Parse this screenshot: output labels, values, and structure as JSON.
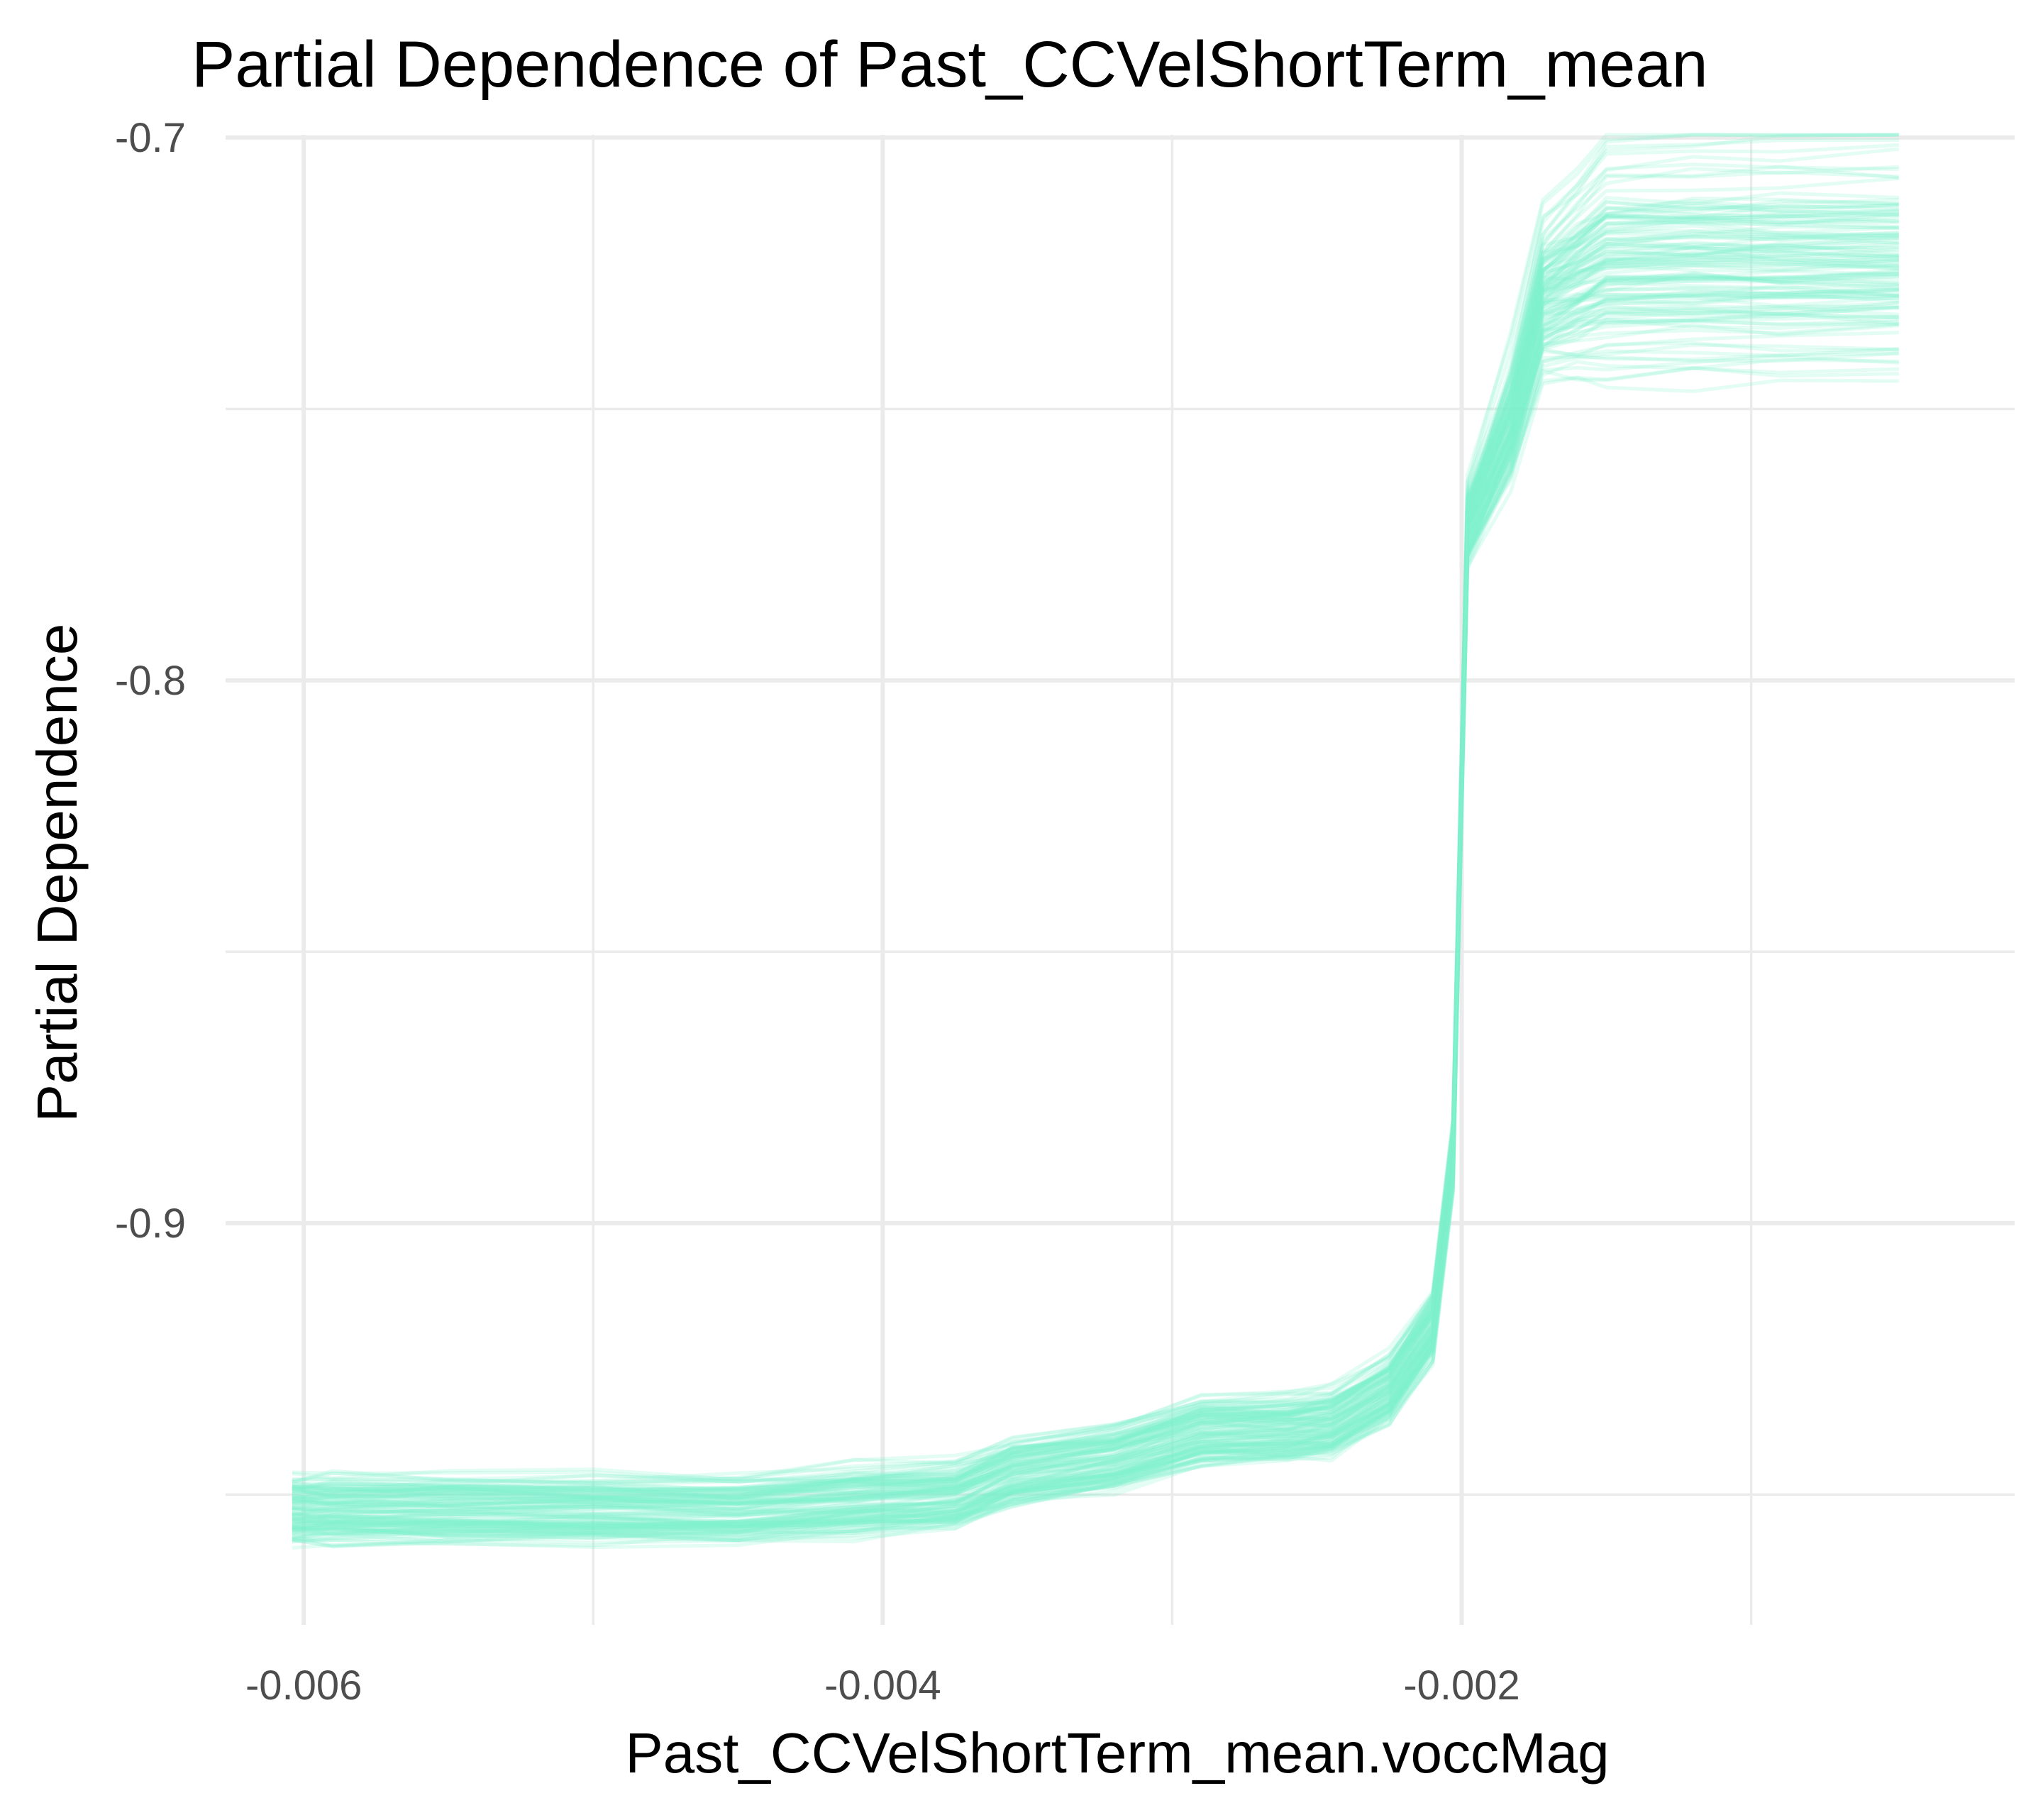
{
  "chart_data": {
    "type": "line",
    "title": "Partial Dependence of Past_CCVelShortTerm_mean",
    "xlabel": "Past_CCVelShortTerm_mean.voccMag",
    "ylabel": "Partial Dependence",
    "xlim": [
      -0.00627,
      -9e-05
    ],
    "ylim": [
      -0.974,
      -0.6995
    ],
    "x_ticks": [
      -0.006,
      -0.004,
      -0.002
    ],
    "x_tick_labels": [
      "-0.006",
      "-0.004",
      "-0.002"
    ],
    "x_minor_ticks": [
      -0.005,
      -0.003,
      -0.001
    ],
    "y_ticks": [
      -0.7,
      -0.8,
      -0.9
    ],
    "y_tick_labels": [
      "-0.7",
      "-0.8",
      "-0.9"
    ],
    "y_minor_ticks": [
      -0.75,
      -0.85,
      -0.95
    ],
    "grid": true,
    "legend": "none",
    "line_color": "#7ef2cc",
    "line_opacity": 0.22,
    "num_lines": 120,
    "x": [
      -0.00604,
      -0.0059,
      -0.0055,
      -0.005,
      -0.0045,
      -0.0041,
      -0.00375,
      -0.00355,
      -0.0032,
      -0.0029,
      -0.0026,
      -0.00245,
      -0.00225,
      -0.0021,
      -0.00203,
      -0.00198,
      -0.00183,
      -0.00172,
      -0.0016,
      -0.0015,
      -0.0012,
      -0.0009,
      -0.00049
    ],
    "series": [
      {
        "values": [
          -0.9525,
          -0.9525,
          -0.9525,
          -0.9525,
          -0.9525,
          -0.9506,
          -0.9498,
          -0.946,
          -0.943,
          -0.938,
          -0.9375,
          -0.9364,
          -0.93,
          -0.918,
          -0.886,
          -0.772,
          -0.756,
          -0.732,
          -0.729,
          -0.727,
          -0.727,
          -0.727,
          -0.727
        ]
      },
      {
        "values": [
          -0.9545,
          -0.9545,
          -0.9545,
          -0.9545,
          -0.9545,
          -0.954,
          -0.9524,
          -0.947,
          -0.945,
          -0.941,
          -0.9395,
          -0.939,
          -0.933,
          -0.923,
          -0.892,
          -0.778,
          -0.761,
          -0.743,
          -0.741,
          -0.74,
          -0.74,
          -0.74,
          -0.74
        ]
      },
      {
        "values": [
          -0.9505,
          -0.9505,
          -0.9505,
          -0.9505,
          -0.9505,
          -0.9486,
          -0.9478,
          -0.944,
          -0.941,
          -0.936,
          -0.9355,
          -0.9344,
          -0.928,
          -0.916,
          -0.884,
          -0.764,
          -0.738,
          -0.713,
          -0.708,
          -0.702,
          -0.7,
          -0.7,
          -0.7
        ]
      }
    ]
  }
}
